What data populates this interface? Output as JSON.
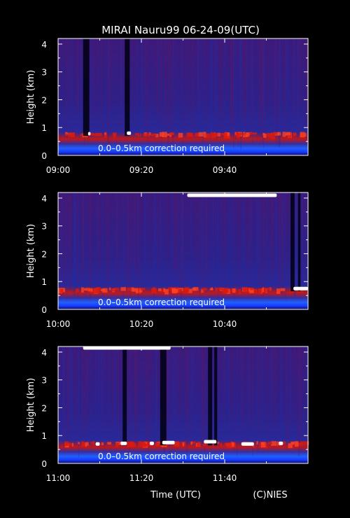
{
  "chart_data": {
    "type": "heatmap",
    "title": "MIRAI Nauru99 06-24-09(UTC)",
    "xlabel": "Time (UTC)",
    "credit": "(C)NIES",
    "ylabel": "Height (km)",
    "colors": {
      "background": "#000000",
      "axis": "#ffffff",
      "text": "#ffffff"
    },
    "panels": [
      {
        "xlim_minutes": [
          0,
          60
        ],
        "ylim": [
          0,
          4.2
        ],
        "x_ticks": [
          "09:00",
          "09:20",
          "09:40"
        ],
        "y_ticks": [
          "0",
          "1",
          "2",
          "3",
          "4"
        ],
        "annotation": "0.0–0.5km correction required",
        "boundary_layer_km": 0.7,
        "cloud_segments": [
          {
            "t": [
              7.2,
              7.8
            ],
            "h": 0.78
          },
          {
            "t": [
              16.5,
              17.5
            ],
            "h": 0.8
          }
        ],
        "dark_columns": [
          [
            6,
            7.5
          ],
          [
            16,
            17.2
          ]
        ]
      },
      {
        "xlim_minutes": [
          0,
          60
        ],
        "ylim": [
          0,
          4.2
        ],
        "x_ticks": [
          "10:00",
          "10:20",
          "10:40"
        ],
        "y_ticks": [
          "0",
          "1",
          "2",
          "3",
          "4"
        ],
        "annotation": "0.0–0.5km correction required",
        "boundary_layer_km": 0.65,
        "cloud_segments": [
          {
            "t": [
              31,
              52.5
            ],
            "h": 4.1
          },
          {
            "t": [
              56.5,
              60
            ],
            "h": 0.75
          }
        ],
        "dark_columns": [
          [
            55.8,
            56.8
          ],
          [
            57.6,
            58.2
          ]
        ]
      },
      {
        "xlim_minutes": [
          0,
          60
        ],
        "ylim": [
          0,
          4.2
        ],
        "x_ticks": [
          "11:00",
          "11:20",
          "11:40"
        ],
        "y_ticks": [
          "0",
          "1",
          "2",
          "3",
          "4"
        ],
        "annotation": "0.0–0.5km correction required",
        "boundary_layer_km": 0.65,
        "cloud_segments": [
          {
            "t": [
              6,
              27
            ],
            "h": 4.15
          },
          {
            "t": [
              9,
              10
            ],
            "h": 0.7
          },
          {
            "t": [
              15,
              16.5
            ],
            "h": 0.72
          },
          {
            "t": [
              22,
              23
            ],
            "h": 0.72
          },
          {
            "t": [
              25,
              28
            ],
            "h": 0.75
          },
          {
            "t": [
              35,
              38
            ],
            "h": 0.78
          },
          {
            "t": [
              44,
              47
            ],
            "h": 0.7
          },
          {
            "t": [
              53,
              54
            ],
            "h": 0.72
          }
        ],
        "dark_columns": [
          [
            15.5,
            16.5
          ],
          [
            24.5,
            26
          ],
          [
            36,
            37
          ],
          [
            37.5,
            38.2
          ]
        ]
      }
    ]
  }
}
